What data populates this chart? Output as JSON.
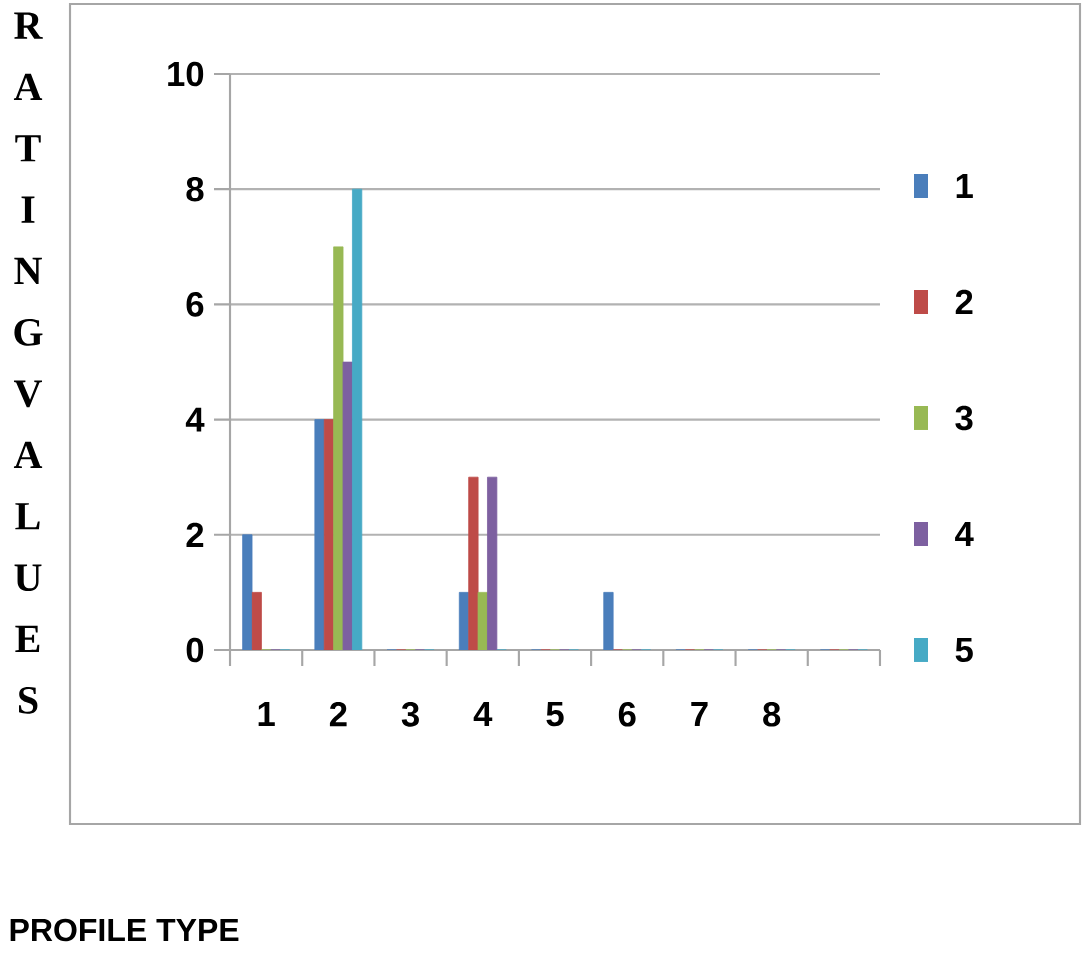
{
  "chart_data": {
    "type": "bar",
    "annotations": [
      "PROFILE TYPE"
    ],
    "ylabel": "RATING VALUES",
    "categories": [
      "1",
      "2",
      "3",
      "4",
      "5",
      "6",
      "7",
      "8",
      null
    ],
    "series": [
      {
        "name": "1",
        "color": "#4a7ebb",
        "values": [
          2,
          4,
          0,
          1,
          0,
          1,
          0,
          0,
          0
        ]
      },
      {
        "name": "2",
        "color": "#be4b48",
        "values": [
          1,
          4,
          0,
          3,
          0,
          0,
          0,
          0,
          0
        ]
      },
      {
        "name": "3",
        "color": "#98b954",
        "values": [
          0,
          7,
          0,
          1,
          0,
          0,
          0,
          0,
          0
        ]
      },
      {
        "name": "4",
        "color": "#7d60a0",
        "values": [
          0,
          5,
          0,
          3,
          0,
          0,
          0,
          0,
          0
        ]
      },
      {
        "name": "5",
        "color": "#46aac5",
        "values": [
          0,
          8,
          0,
          0,
          0,
          0,
          0,
          0,
          0
        ]
      }
    ],
    "ylim": [
      0,
      10
    ],
    "yticks": [
      0,
      2,
      4,
      6,
      8,
      10
    ],
    "grid": "y",
    "legend": "right"
  }
}
